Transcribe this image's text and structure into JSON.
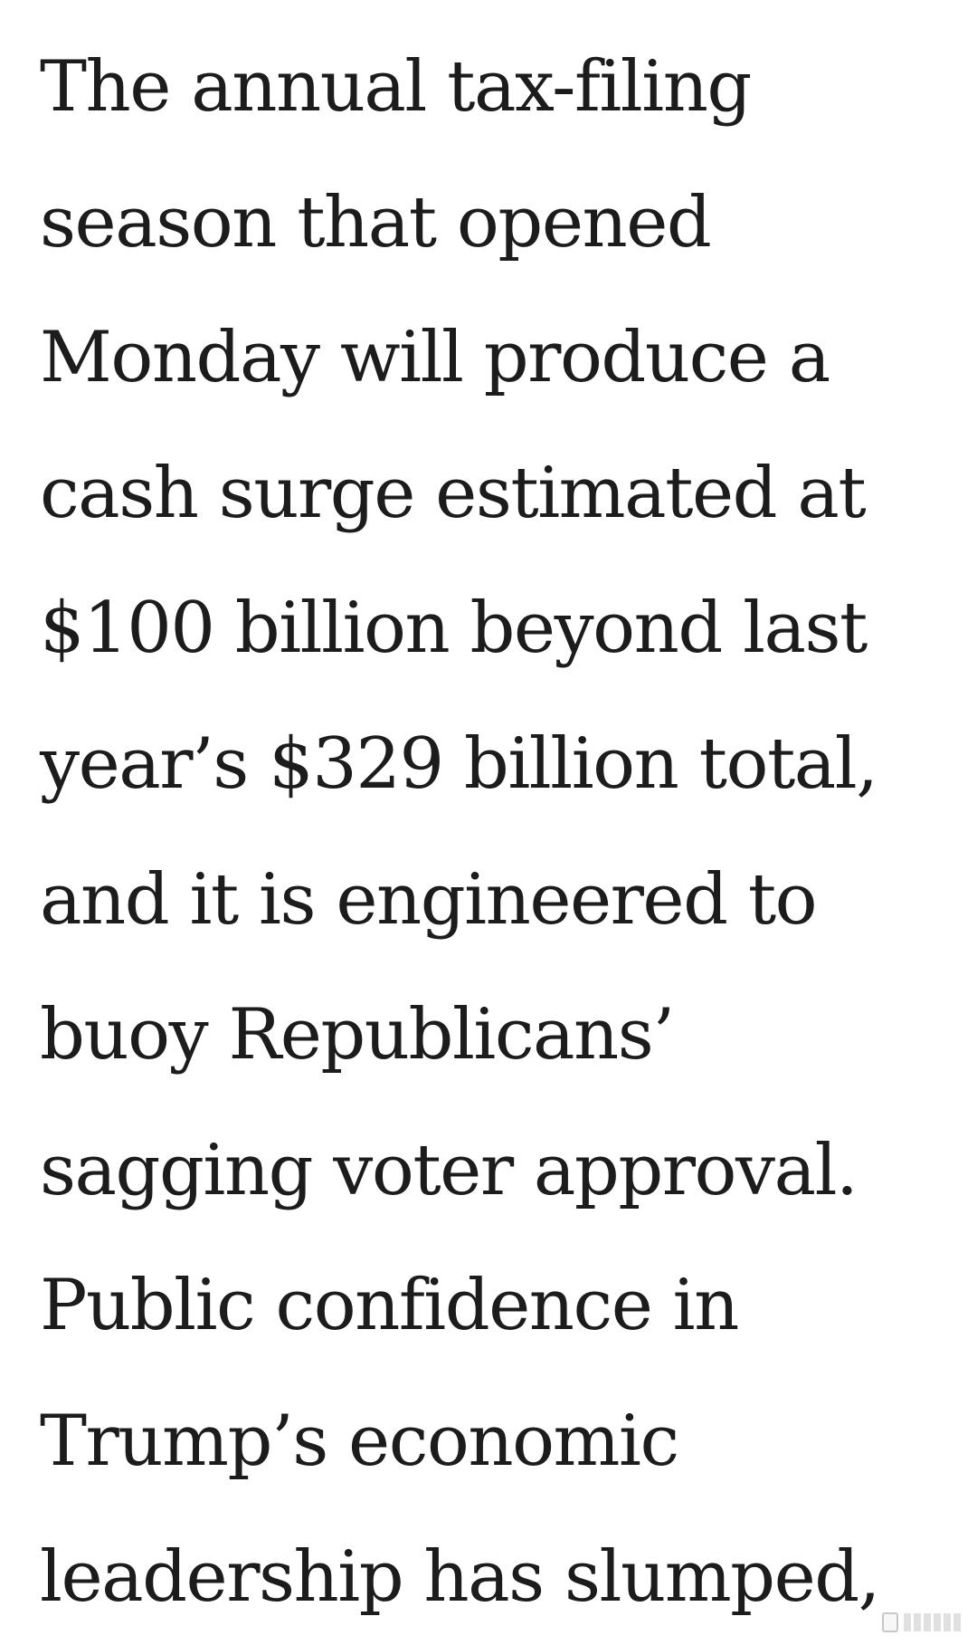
{
  "article": {
    "lines": [
      "The annual tax-filing",
      "season that opened",
      "Monday will produce a",
      "cash surge estimated at",
      "$100 billion beyond last",
      "year’s $329 billion total,",
      "and it is engineered to",
      "buoy Republicans’",
      "sagging voter approval.",
      "Public confidence in",
      "Trump’s economic",
      "leadership has slumped,"
    ]
  }
}
